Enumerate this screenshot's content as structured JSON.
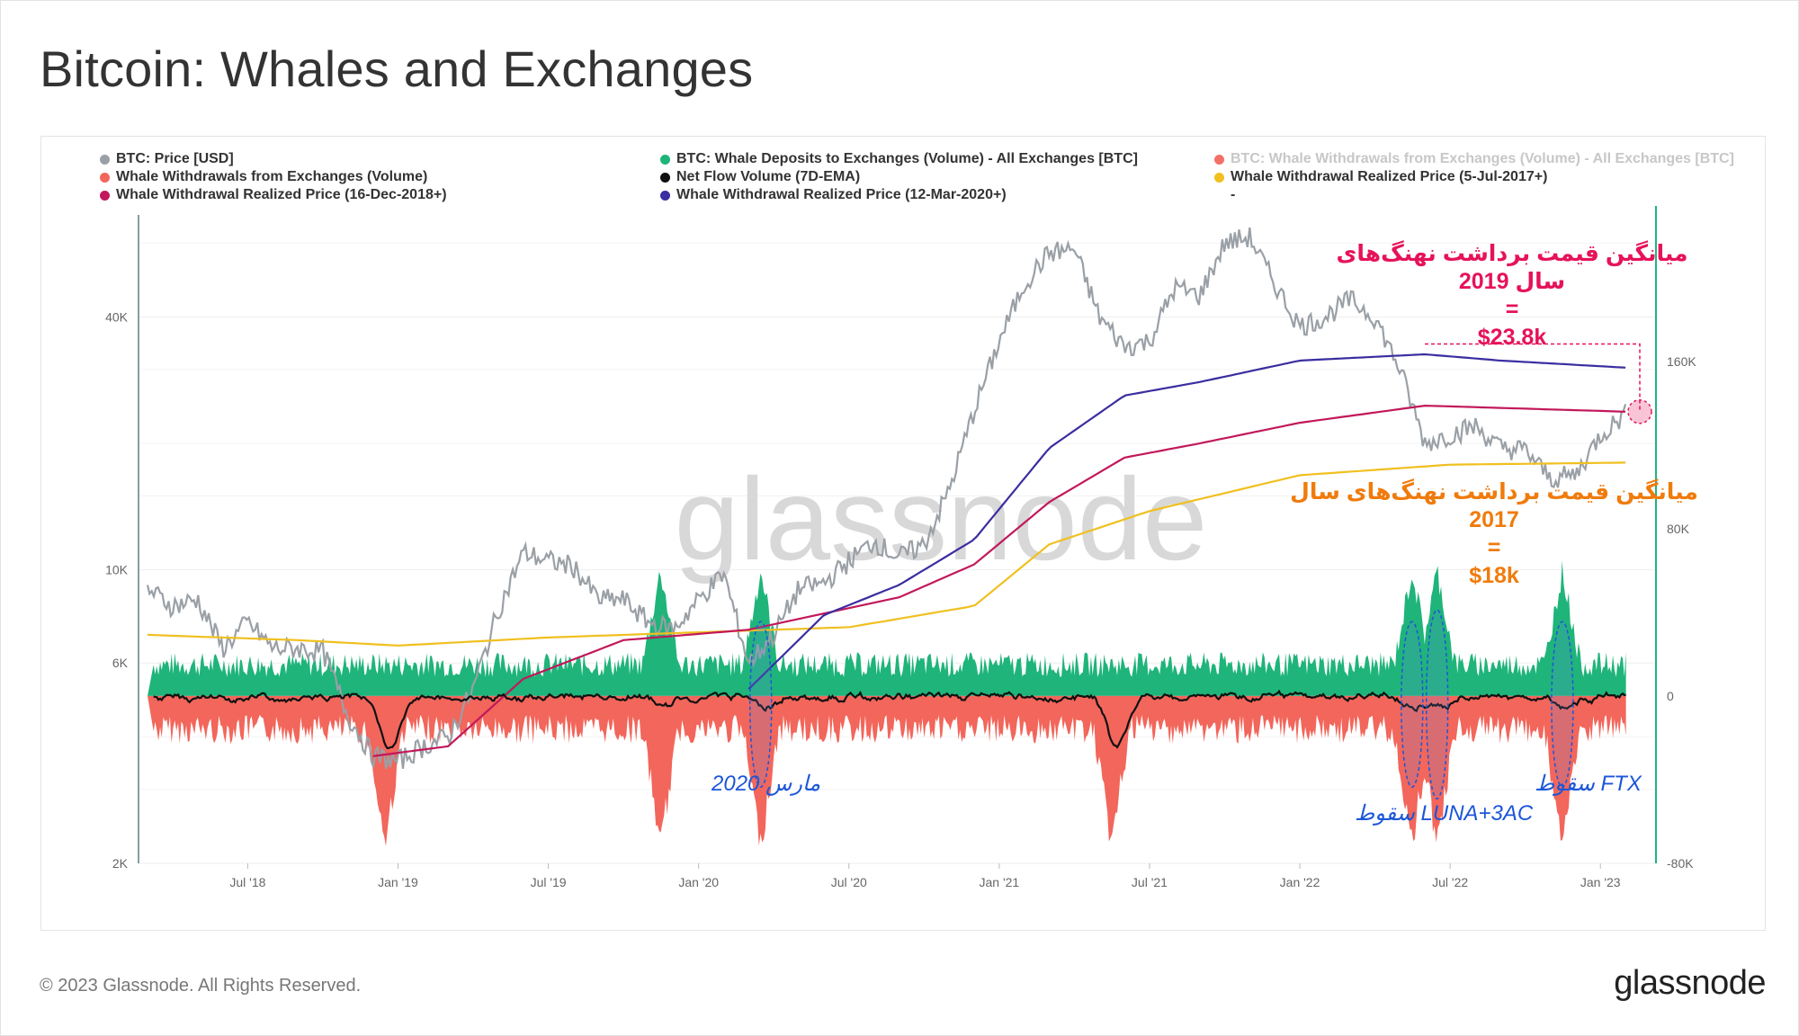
{
  "title": "Bitcoin: Whales and Exchanges",
  "footer": {
    "copyright": "© 2023 Glassnode. All Rights Reserved.",
    "logo": "glassnode"
  },
  "watermark": "glassnode",
  "legend": [
    {
      "label": "BTC: Price [USD]",
      "color": "#9aa0a6",
      "faded": false
    },
    {
      "label": "BTC: Whale Deposits to Exchanges (Volume) - All Exchanges [BTC]",
      "color": "#1fb47a",
      "faded": false
    },
    {
      "label": "BTC: Whale Withdrawals from Exchanges (Volume) - All Exchanges [BTC]",
      "color": "#f37066",
      "faded": true
    },
    {
      "label": "Whale Withdrawals from Exchanges (Volume)",
      "color": "#f2665b",
      "faded": false
    },
    {
      "label": "Net Flow Volume (7D-EMA)",
      "color": "#111111",
      "faded": false
    },
    {
      "label": "Whale Withdrawal Realized Price (5-Jul-2017+)",
      "color": "#f0c020",
      "faded": false
    },
    {
      "label": "Whale Withdrawal Realized Price (16-Dec-2018+)",
      "color": "#c2185b",
      "faded": false
    },
    {
      "label": "Whale Withdrawal Realized Price (12-Mar-2020+)",
      "color": "#3a2ea0",
      "faded": false
    },
    {
      "label": "-",
      "color": "#ffffff",
      "faded": false
    }
  ],
  "annotations": {
    "pink": {
      "line1": "میانگین قیمت برداشت نهنگ‌های",
      "line2": "سال  2019",
      "line3": "=",
      "line4": "$23.8k"
    },
    "orange": {
      "line1": "میانگین قیمت برداشت نهنگ‌های سال",
      "line2": "2017",
      "line3": "=",
      "line4": "$18k"
    },
    "march2020": "مارس 2020",
    "luna": "سقوط LUNA+3AC",
    "ftx": "سقوط FTX"
  },
  "colors": {
    "price": "#9aa0a6",
    "deposits": "#1fb47a",
    "withdrawals": "#f2665b",
    "netflow": "#111111",
    "rp2017": "#f0c020",
    "rp2018": "#c2185b",
    "rp2020": "#3a2ea0",
    "left_axis": "#8a9aa5",
    "right_axis": "#1fb47a",
    "highlight": "#1c56d8"
  },
  "chart_data": {
    "type": "line",
    "x_start": "2018-03",
    "x_end": "2023-02",
    "x_ticks": [
      "Jul '18",
      "Jan '19",
      "Jul '19",
      "Jan '20",
      "Jul '20",
      "Jan '21",
      "Jul '21",
      "Jan '22",
      "Jul '22",
      "Jan '23"
    ],
    "y_left": {
      "scale": "log",
      "range": [
        2000,
        70000
      ],
      "ticks": [
        "2K",
        "6K",
        "10K",
        "40K"
      ],
      "tick_values": [
        2000,
        6000,
        10000,
        40000
      ]
    },
    "y_right": {
      "scale": "linear",
      "range": [
        -80000,
        230000
      ],
      "ticks": [
        "-80K",
        "0",
        "80K",
        "160K"
      ],
      "tick_values": [
        -80000,
        0,
        80000,
        160000
      ]
    },
    "series": [
      {
        "name": "BTC: Price [USD]",
        "axis": "left",
        "points": [
          [
            "2018-03",
            9000
          ],
          [
            "2018-04",
            8200
          ],
          [
            "2018-05",
            8500
          ],
          [
            "2018-06",
            6500
          ],
          [
            "2018-07",
            7500
          ],
          [
            "2018-08",
            6500
          ],
          [
            "2018-09",
            6500
          ],
          [
            "2018-10",
            6400
          ],
          [
            "2018-11",
            4500
          ],
          [
            "2018-12",
            3600
          ],
          [
            "2019-01",
            3500
          ],
          [
            "2019-02",
            3800
          ],
          [
            "2019-03",
            4000
          ],
          [
            "2019-04",
            5200
          ],
          [
            "2019-05",
            8000
          ],
          [
            "2019-06",
            11000
          ],
          [
            "2019-07",
            10500
          ],
          [
            "2019-08",
            10200
          ],
          [
            "2019-09",
            8500
          ],
          [
            "2019-10",
            8500
          ],
          [
            "2019-11",
            7500
          ],
          [
            "2019-12",
            7200
          ],
          [
            "2020-01",
            8500
          ],
          [
            "2020-02",
            9800
          ],
          [
            "2020-03",
            6000
          ],
          [
            "2020-04",
            7000
          ],
          [
            "2020-05",
            9000
          ],
          [
            "2020-06",
            9300
          ],
          [
            "2020-07",
            10500
          ],
          [
            "2020-08",
            11700
          ],
          [
            "2020-09",
            10700
          ],
          [
            "2020-10",
            11500
          ],
          [
            "2020-11",
            15500
          ],
          [
            "2020-12",
            24000
          ],
          [
            "2021-01",
            35000
          ],
          [
            "2021-02",
            48000
          ],
          [
            "2021-03",
            57000
          ],
          [
            "2021-04",
            58000
          ],
          [
            "2021-05",
            40000
          ],
          [
            "2021-06",
            34000
          ],
          [
            "2021-07",
            35000
          ],
          [
            "2021-08",
            47000
          ],
          [
            "2021-09",
            45000
          ],
          [
            "2021-10",
            60000
          ],
          [
            "2021-11",
            62000
          ],
          [
            "2021-12",
            48000
          ],
          [
            "2022-01",
            38000
          ],
          [
            "2022-02",
            40000
          ],
          [
            "2022-03",
            44000
          ],
          [
            "2022-04",
            40000
          ],
          [
            "2022-05",
            30000
          ],
          [
            "2022-06",
            20000
          ],
          [
            "2022-07",
            21000
          ],
          [
            "2022-08",
            22000
          ],
          [
            "2022-09",
            19500
          ],
          [
            "2022-10",
            19300
          ],
          [
            "2022-11",
            16500
          ],
          [
            "2022-12",
            16800
          ],
          [
            "2023-01",
            21000
          ],
          [
            "2023-02",
            23500
          ]
        ]
      },
      {
        "name": "Whale Withdrawal Realized Price (5-Jul-2017+)",
        "axis": "left",
        "points": [
          [
            "2018-03",
            7000
          ],
          [
            "2018-09",
            6800
          ],
          [
            "2019-01",
            6600
          ],
          [
            "2019-07",
            6900
          ],
          [
            "2020-01",
            7100
          ],
          [
            "2020-07",
            7300
          ],
          [
            "2020-12",
            8200
          ],
          [
            "2021-03",
            11500
          ],
          [
            "2021-07",
            13800
          ],
          [
            "2022-01",
            16800
          ],
          [
            "2022-07",
            17800
          ],
          [
            "2023-02",
            18000
          ]
        ]
      },
      {
        "name": "Whale Withdrawal Realized Price (16-Dec-2018+)",
        "axis": "left",
        "points": [
          [
            "2018-12",
            3600
          ],
          [
            "2019-03",
            3800
          ],
          [
            "2019-06",
            5500
          ],
          [
            "2019-10",
            6800
          ],
          [
            "2020-03",
            7200
          ],
          [
            "2020-09",
            8600
          ],
          [
            "2020-12",
            10300
          ],
          [
            "2021-03",
            14500
          ],
          [
            "2021-06",
            18500
          ],
          [
            "2021-09",
            20000
          ],
          [
            "2022-01",
            22400
          ],
          [
            "2022-06",
            24600
          ],
          [
            "2023-02",
            23800
          ]
        ]
      },
      {
        "name": "Whale Withdrawal Realized Price (12-Mar-2020+)",
        "axis": "left",
        "points": [
          [
            "2020-03",
            5200
          ],
          [
            "2020-06",
            7800
          ],
          [
            "2020-09",
            9200
          ],
          [
            "2020-12",
            11800
          ],
          [
            "2021-03",
            19500
          ],
          [
            "2021-06",
            26000
          ],
          [
            "2021-09",
            28000
          ],
          [
            "2022-01",
            31500
          ],
          [
            "2022-06",
            32600
          ],
          [
            "2022-09",
            31500
          ],
          [
            "2023-02",
            30300
          ]
        ]
      }
    ],
    "flow_series": [
      {
        "name": "Whale Deposits to Exchanges (Volume)",
        "axis": "right",
        "sign": "positive",
        "spikes": [
          "2019-11",
          "2020-03",
          "2022-05",
          "2022-06",
          "2022-11"
        ]
      },
      {
        "name": "Whale Withdrawals from Exchanges (Volume)",
        "axis": "right",
        "sign": "negative",
        "spikes": [
          "2018-12",
          "2019-11",
          "2020-03",
          "2021-05",
          "2022-05",
          "2022-06",
          "2022-11"
        ]
      },
      {
        "name": "Net Flow Volume (7D-EMA)",
        "axis": "right",
        "sign": "both"
      }
    ]
  }
}
